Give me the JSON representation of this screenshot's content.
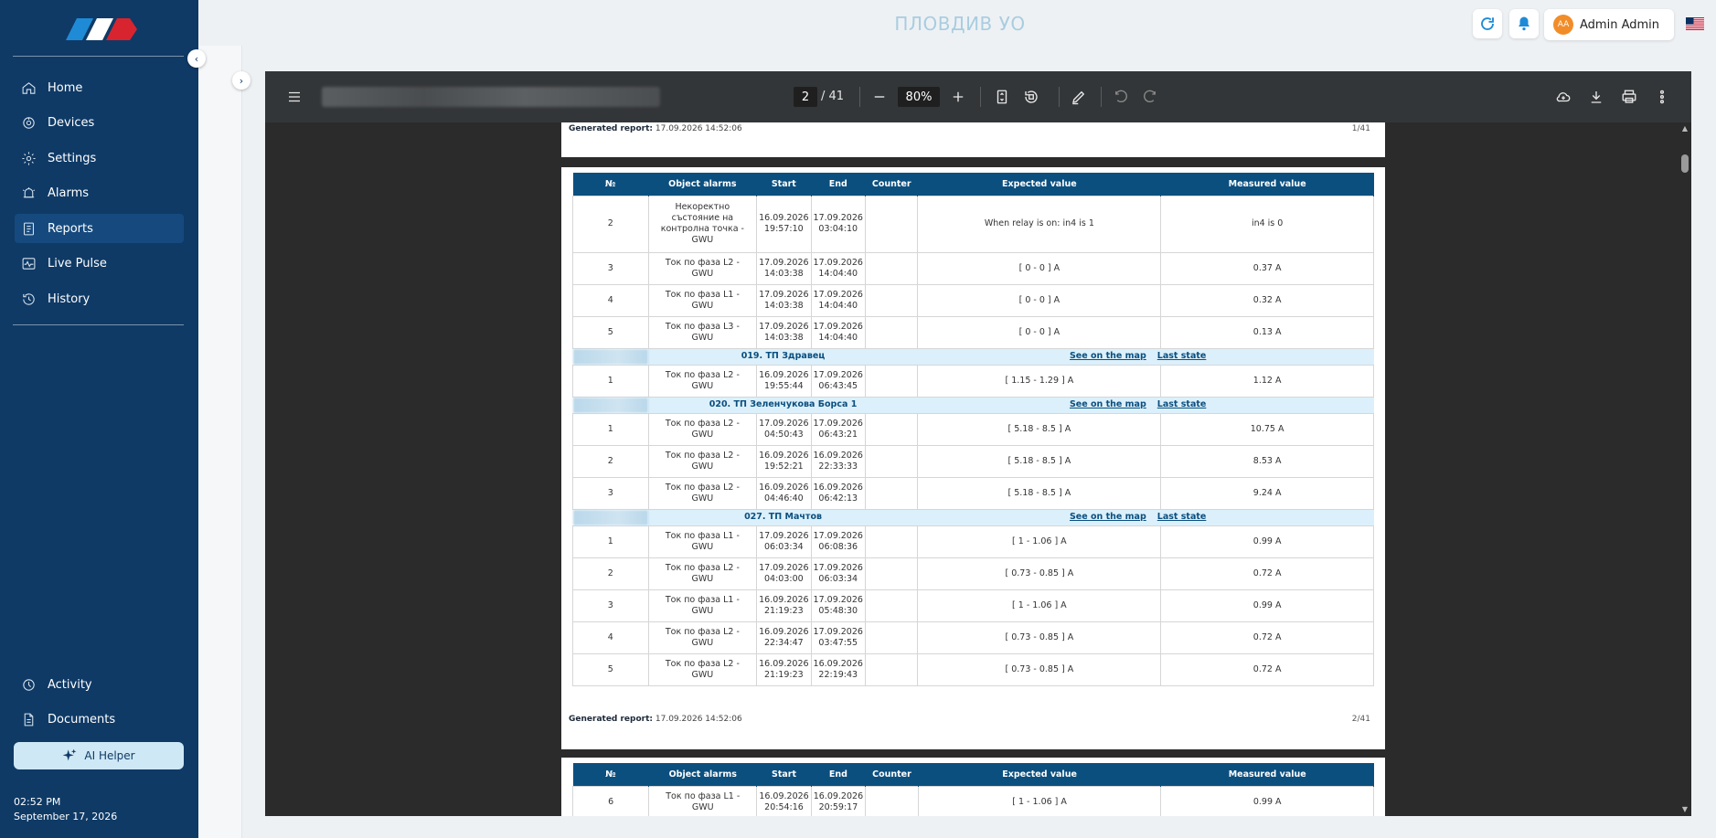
{
  "app": {
    "title": "ПЛОВДИВ УО"
  },
  "logo": {
    "name": "brand-logo",
    "colors": [
      "#1f8bd6",
      "#ffffff",
      "#d8242f"
    ]
  },
  "sidebar": {
    "items": [
      {
        "label": "Home",
        "icon": "home-icon"
      },
      {
        "label": "Devices",
        "icon": "devices-icon"
      },
      {
        "label": "Settings",
        "icon": "gear-icon"
      },
      {
        "label": "Alarms",
        "icon": "alarm-icon"
      },
      {
        "label": "Reports",
        "icon": "reports-icon",
        "active": true
      },
      {
        "label": "Live Pulse",
        "icon": "pulse-icon"
      },
      {
        "label": "History",
        "icon": "history-icon"
      }
    ],
    "bottom_items": [
      {
        "label": "Activity",
        "icon": "activity-icon"
      },
      {
        "label": "Documents",
        "icon": "documents-icon"
      }
    ],
    "ai_helper": "AI Helper",
    "time": "02:52 PM",
    "date": "September 17, 2026"
  },
  "header": {
    "user_initials": "AA",
    "user_name": "Admin Admin",
    "language_flag": "us-flag-icon"
  },
  "pdf": {
    "current_page": "2",
    "total_pages": "/ 41",
    "zoom": "80%",
    "footer_label": "Generated report:",
    "footer_date": "17.09.2026 14:52:06",
    "page1_num": "1/41",
    "page2_num": "2/41",
    "columns": [
      "№",
      "Object alarms",
      "Start",
      "End",
      "Counter",
      "Expected value",
      "Measured value"
    ],
    "page2_rows": [
      {
        "type": "row",
        "no": "2",
        "alarm": "Некоректно състояние на контролна точка - GWU",
        "start": "16.09.2026 19:57:10",
        "end": "17.09.2026 03:04:10",
        "counter": "",
        "expected": "When relay is on: in4 is 1",
        "measured": "in4 is 0"
      },
      {
        "type": "row",
        "no": "3",
        "alarm": "Ток по фаза L2 - GWU",
        "start": "17.09.2026 14:03:38",
        "end": "17.09.2026 14:04:40",
        "counter": "",
        "expected": "[ 0 - 0 ] A",
        "measured": "0.37 A"
      },
      {
        "type": "row",
        "no": "4",
        "alarm": "Ток по фаза L1 - GWU",
        "start": "17.09.2026 14:03:38",
        "end": "17.09.2026 14:04:40",
        "counter": "",
        "expected": "[ 0 - 0 ] A",
        "measured": "0.32 A"
      },
      {
        "type": "row",
        "no": "5",
        "alarm": "Ток по фаза L3 - GWU",
        "start": "17.09.2026 14:03:38",
        "end": "17.09.2026 14:04:40",
        "counter": "",
        "expected": "[ 0 - 0 ] A",
        "measured": "0.13 A"
      },
      {
        "type": "group",
        "name": "019. ТП Здравец",
        "map": "See on the map",
        "last": "Last state"
      },
      {
        "type": "row",
        "no": "1",
        "alarm": "Ток по фаза L2 - GWU",
        "start": "16.09.2026 19:55:44",
        "end": "17.09.2026 06:43:45",
        "counter": "",
        "expected": "[ 1.15 - 1.29 ] A",
        "measured": "1.12 A"
      },
      {
        "type": "group",
        "name": "020. ТП Зеленчукова Борса 1",
        "map": "See on the map",
        "last": "Last state"
      },
      {
        "type": "row",
        "no": "1",
        "alarm": "Ток по фаза L2 - GWU",
        "start": "17.09.2026 04:50:43",
        "end": "17.09.2026 06:43:21",
        "counter": "",
        "expected": "[ 5.18 - 8.5 ] A",
        "measured": "10.75 A"
      },
      {
        "type": "row",
        "no": "2",
        "alarm": "Ток по фаза L2 - GWU",
        "start": "16.09.2026 19:52:21",
        "end": "16.09.2026 22:33:33",
        "counter": "",
        "expected": "[ 5.18 - 8.5 ] A",
        "measured": "8.53 A"
      },
      {
        "type": "row",
        "no": "3",
        "alarm": "Ток по фаза L2 - GWU",
        "start": "16.09.2026 04:46:40",
        "end": "16.09.2026 06:42:13",
        "counter": "",
        "expected": "[ 5.18 - 8.5 ] A",
        "measured": "9.24 A"
      },
      {
        "type": "group",
        "name": "027. ТП Мачтов",
        "map": "See on the map",
        "last": "Last state"
      },
      {
        "type": "row",
        "no": "1",
        "alarm": "Ток по фаза L1 - GWU",
        "start": "17.09.2026 06:03:34",
        "end": "17.09.2026 06:08:36",
        "counter": "",
        "expected": "[ 1 - 1.06 ] A",
        "measured": "0.99 A"
      },
      {
        "type": "row",
        "no": "2",
        "alarm": "Ток по фаза L2 - GWU",
        "start": "17.09.2026 04:03:00",
        "end": "17.09.2026 06:03:34",
        "counter": "",
        "expected": "[ 0.73 - 0.85 ] A",
        "measured": "0.72 A"
      },
      {
        "type": "row",
        "no": "3",
        "alarm": "Ток по фаза L1 - GWU",
        "start": "16.09.2026 21:19:23",
        "end": "17.09.2026 05:48:30",
        "counter": "",
        "expected": "[ 1 - 1.06 ] A",
        "measured": "0.99 A"
      },
      {
        "type": "row",
        "no": "4",
        "alarm": "Ток по фаза L2 - GWU",
        "start": "16.09.2026 22:34:47",
        "end": "17.09.2026 03:47:55",
        "counter": "",
        "expected": "[ 0.73 - 0.85 ] A",
        "measured": "0.72 A"
      },
      {
        "type": "row",
        "no": "5",
        "alarm": "Ток по фаза L2 - GWU",
        "start": "16.09.2026 21:19:23",
        "end": "16.09.2026 22:19:43",
        "counter": "",
        "expected": "[ 0.73 - 0.85 ] A",
        "measured": "0.72 A"
      }
    ],
    "page3_rows": [
      {
        "type": "row",
        "no": "6",
        "alarm": "Ток по фаза L1 - GWU",
        "start": "16.09.2026 20:54:16",
        "end": "16.09.2026 20:59:17",
        "counter": "",
        "expected": "[ 1 - 1.06 ] A",
        "measured": "0.99 A"
      }
    ]
  }
}
